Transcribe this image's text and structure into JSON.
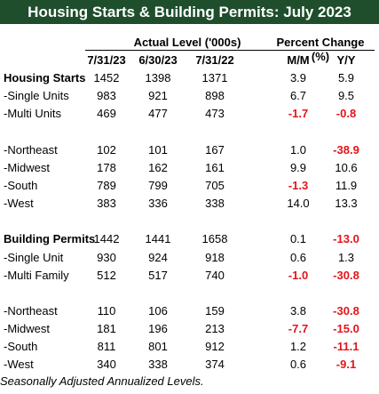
{
  "title": "Housing Starts & Building Permits: July 2023",
  "headers": {
    "actual_group": "Actual Level ('000s)",
    "percent_group": "Percent Change (%)",
    "columns": [
      "7/31/23",
      "6/30/23",
      "7/31/22",
      "M/M",
      "Y/Y"
    ]
  },
  "rows": [
    {
      "label": "Housing Starts",
      "section": true,
      "values": [
        "1452",
        "1398",
        "1371",
        "3.9",
        "5.9"
      ]
    },
    {
      "label": " -Single Units",
      "values": [
        "983",
        "921",
        "898",
        "6.7",
        "9.5"
      ]
    },
    {
      "label": " -Multi Units",
      "values": [
        "469",
        "477",
        "473",
        "-1.7",
        "-0.8"
      ]
    },
    {
      "spacer": true
    },
    {
      "label": " -Northeast",
      "values": [
        "102",
        "101",
        "167",
        "1.0",
        "-38.9"
      ]
    },
    {
      "label": " -Midwest",
      "values": [
        "178",
        "162",
        "161",
        "9.9",
        "10.6"
      ]
    },
    {
      "label": " -South",
      "values": [
        "789",
        "799",
        "705",
        "-1.3",
        "11.9"
      ]
    },
    {
      "label": " -West",
      "values": [
        "383",
        "336",
        "338",
        "14.0",
        "13.3"
      ]
    },
    {
      "spacer": true
    },
    {
      "label": "Building Permits",
      "section": true,
      "values": [
        "1442",
        "1441",
        "1658",
        "0.1",
        "-13.0"
      ]
    },
    {
      "label": " -Single Unit",
      "values": [
        "930",
        "924",
        "918",
        "0.6",
        "1.3"
      ]
    },
    {
      "label": " -Multi Family",
      "values": [
        "512",
        "517",
        "740",
        "-1.0",
        "-30.8"
      ]
    },
    {
      "spacer": true
    },
    {
      "label": " -Northeast",
      "values": [
        "110",
        "106",
        "159",
        "3.8",
        "-30.8"
      ]
    },
    {
      "label": " -Midwest",
      "values": [
        "181",
        "196",
        "213",
        "-7.7",
        "-15.0"
      ]
    },
    {
      "label": " -South",
      "values": [
        "811",
        "801",
        "912",
        "1.2",
        "-11.1"
      ]
    },
    {
      "label": " -West",
      "values": [
        "340",
        "338",
        "374",
        "0.6",
        "-9.1"
      ]
    }
  ],
  "footer": "Seasonally Adjusted Annualized Levels.",
  "colors": {
    "title_bg": "#1f4e2c",
    "negative": "#e3151a"
  }
}
